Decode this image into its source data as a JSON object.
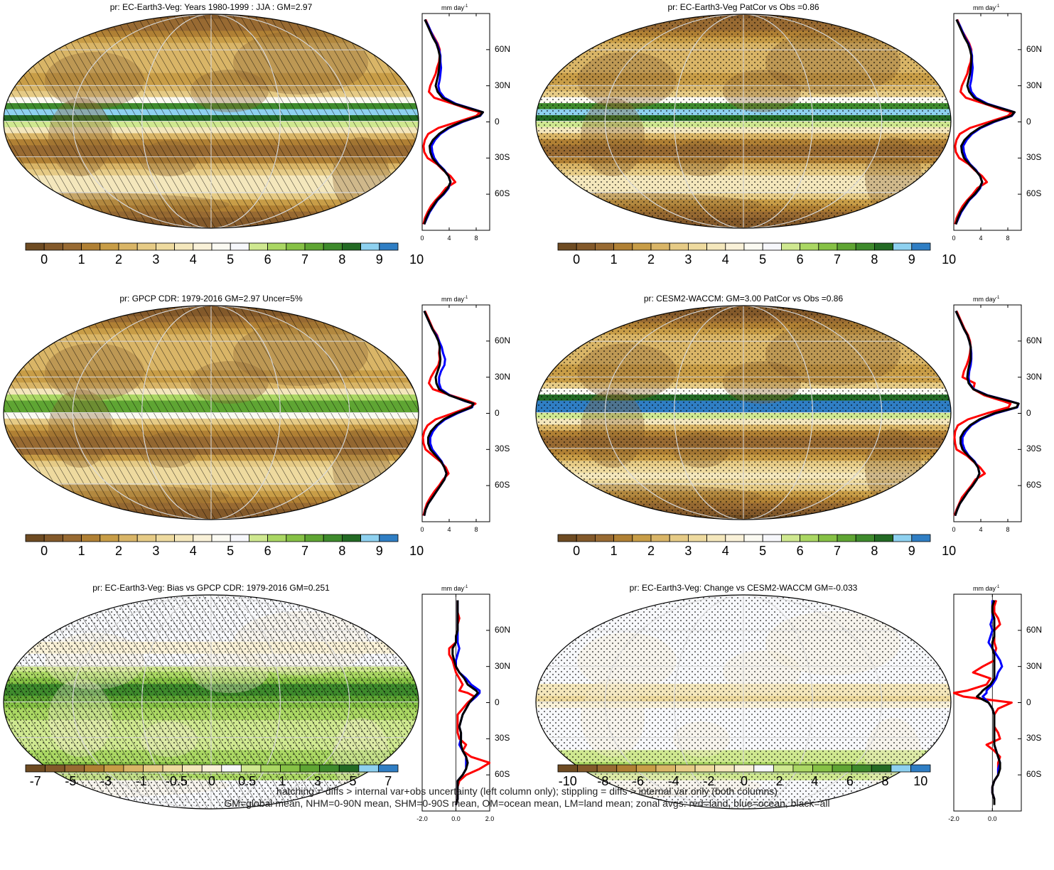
{
  "colors": {
    "seq": [
      "#6e4b22",
      "#83592a",
      "#986a32",
      "#b08034",
      "#c89d47",
      "#d9b567",
      "#e6cb86",
      "#eeda9f",
      "#f4e7bc",
      "#f9f1d8",
      "#fbfaf2",
      "#f6f7fb",
      "#cfe890",
      "#aad763",
      "#86c145",
      "#5fa533",
      "#3e8a2c",
      "#236a24",
      "#8ed1f0",
      "#2f7ec4"
    ],
    "div": [
      "#6e4b22",
      "#83592a",
      "#986a32",
      "#b08034",
      "#c89d47",
      "#d9b567",
      "#e6cb86",
      "#eeda9f",
      "#f4e7bc",
      "#f9f1d8",
      "#f7f8fb",
      "#cfe890",
      "#aad763",
      "#86c145",
      "#5fa533",
      "#3e8a2c",
      "#236a24",
      "#8ed1f0",
      "#2f7ec4"
    ],
    "land": "#ff0000",
    "ocean": "#0000ff",
    "all": "#000000"
  },
  "panels": [
    {
      "id": "p1",
      "title": "pr: EC-Earth3-Veg: Years 1980-1999 : JJA : GM=2.97",
      "scheme": "seq",
      "hatching": true,
      "stippling": false,
      "colorbar_labels": [
        "0",
        "1",
        "2",
        "3",
        "4",
        "5",
        "6",
        "7",
        "8",
        "9",
        "10"
      ],
      "zonal": {
        "unit": "mm day",
        "unit_sup": "-1",
        "xticks": [
          "0",
          "4",
          "8"
        ],
        "xlim": [
          0,
          10
        ],
        "lat_labels": [
          "60N",
          "30N",
          "0",
          "30S",
          "60S"
        ]
      }
    },
    {
      "id": "p2",
      "title": "pr: EC-Earth3-Veg PatCor vs Obs =0.86",
      "scheme": "seq",
      "hatching": false,
      "stippling": true,
      "colorbar_labels": [
        "0",
        "1",
        "2",
        "3",
        "4",
        "5",
        "6",
        "7",
        "8",
        "9",
        "10"
      ],
      "zonal": {
        "unit": "mm day",
        "unit_sup": "-1",
        "xticks": [
          "0",
          "4",
          "8"
        ],
        "xlim": [
          0,
          10
        ],
        "lat_labels": [
          "60N",
          "30N",
          "0",
          "30S",
          "60S"
        ]
      }
    },
    {
      "id": "p3",
      "title": "pr: GPCP CDR: 1979-2016 GM=2.97 Uncer=5%",
      "scheme": "seq",
      "hatching": true,
      "stippling": false,
      "colorbar_labels": [
        "0",
        "1",
        "2",
        "3",
        "4",
        "5",
        "6",
        "7",
        "8",
        "9",
        "10"
      ],
      "zonal": {
        "unit": "mm day",
        "unit_sup": "-1",
        "xticks": [
          "0",
          "4",
          "8"
        ],
        "xlim": [
          0,
          10
        ],
        "lat_labels": [
          "60N",
          "30N",
          "0",
          "30S",
          "60S"
        ]
      }
    },
    {
      "id": "p4",
      "title": "pr: CESM2-WACCM: GM=3.00 PatCor vs Obs =0.86",
      "scheme": "seq",
      "hatching": false,
      "stippling": true,
      "colorbar_labels": [
        "0",
        "1",
        "2",
        "3",
        "4",
        "5",
        "6",
        "7",
        "8",
        "9",
        "10"
      ],
      "zonal": {
        "unit": "mm day",
        "unit_sup": "-1",
        "xticks": [
          "0",
          "4",
          "8"
        ],
        "xlim": [
          0,
          10
        ],
        "lat_labels": [
          "60N",
          "30N",
          "0",
          "30S",
          "60S"
        ]
      }
    },
    {
      "id": "p5",
      "title": "pr: EC-Earth3-Veg: Bias vs GPCP CDR: 1979-2016 GM=0.251",
      "scheme": "div",
      "hatching": true,
      "stippling": true,
      "colorbar_labels": [
        "-7",
        "-5",
        "-3",
        "-1",
        "-0.5",
        "0",
        "0.5",
        "1",
        "3",
        "5",
        "7"
      ],
      "zonal": {
        "unit": "mm day",
        "unit_sup": "-1",
        "xticks": [
          "-2.0",
          "0.0",
          "2.0"
        ],
        "xlim": [
          -2,
          2
        ],
        "lat_labels": [
          "60N",
          "30N",
          "0",
          "30S",
          "60S"
        ]
      }
    },
    {
      "id": "p6",
      "title": "pr: EC-Earth3-Veg: Change vs CESM2-WACCM GM=-0.033",
      "scheme": "div",
      "hatching": false,
      "stippling": true,
      "colorbar_labels": [
        "-10",
        "-8",
        "-6",
        "-4",
        "-2",
        "0",
        "2",
        "4",
        "6",
        "8",
        "10"
      ],
      "zonal": {
        "unit": "mm day",
        "unit_sup": "-1",
        "xticks": [
          "-2.0",
          "0.0"
        ],
        "xlim": [
          -2,
          1.5
        ],
        "lat_labels": [
          "60N",
          "30N",
          "0",
          "30S",
          "60S"
        ]
      }
    }
  ],
  "chart_data": {
    "type": "line",
    "x_label_unit": "mm day-1",
    "y_axis": "latitude (degrees, -90 to 90)",
    "latitudes": [
      -85,
      -80,
      -75,
      -70,
      -65,
      -60,
      -55,
      -50,
      -45,
      -40,
      -35,
      -30,
      -25,
      -20,
      -15,
      -10,
      -5,
      0,
      5,
      8,
      10,
      15,
      20,
      25,
      30,
      35,
      40,
      45,
      50,
      55,
      60,
      65,
      70,
      75,
      80,
      85
    ],
    "panels": [
      {
        "id": "p1",
        "all": [
          0.3,
          0.6,
          1.0,
          1.6,
          2.2,
          3.1,
          3.8,
          4.2,
          3.9,
          3.2,
          2.3,
          1.5,
          1.2,
          1.1,
          1.6,
          2.5,
          3.8,
          5.8,
          8.5,
          9.0,
          7.8,
          4.8,
          3.0,
          2.3,
          2.0,
          2.2,
          2.4,
          2.5,
          2.6,
          2.6,
          2.4,
          2.1,
          1.6,
          1.2,
          0.8,
          0.4
        ],
        "land": [
          0.2,
          0.4,
          0.8,
          1.3,
          2.0,
          2.8,
          3.5,
          4.9,
          4.2,
          3.1,
          2.2,
          0.8,
          0.3,
          0.2,
          0.4,
          0.9,
          2.4,
          5.2,
          8.0,
          8.6,
          7.2,
          4.6,
          1.8,
          1.0,
          1.2,
          1.6,
          2.0,
          2.2,
          2.5,
          2.6,
          2.6,
          2.3,
          1.8,
          1.3,
          0.9,
          0.5
        ],
        "ocean": [
          0.3,
          0.7,
          1.1,
          1.7,
          2.3,
          3.2,
          3.9,
          4.2,
          3.9,
          3.3,
          2.4,
          1.8,
          1.5,
          1.4,
          1.9,
          2.7,
          4.0,
          6.0,
          8.6,
          9.0,
          7.9,
          5.0,
          3.3,
          2.6,
          2.4,
          2.6,
          2.7,
          2.8,
          2.7,
          2.7,
          2.5,
          2.2,
          1.7,
          1.3,
          0.9,
          0.4
        ]
      },
      {
        "id": "p2",
        "all": [
          0.3,
          0.6,
          1.0,
          1.6,
          2.2,
          3.1,
          3.8,
          4.2,
          3.9,
          3.2,
          2.3,
          1.5,
          1.2,
          1.1,
          1.6,
          2.5,
          3.8,
          5.8,
          8.5,
          9.0,
          7.8,
          4.8,
          3.0,
          2.3,
          2.0,
          2.2,
          2.4,
          2.5,
          2.6,
          2.6,
          2.4,
          2.1,
          1.6,
          1.2,
          0.8,
          0.4
        ],
        "land": [
          0.2,
          0.4,
          0.8,
          1.3,
          2.0,
          2.8,
          3.5,
          4.9,
          4.2,
          3.1,
          2.2,
          0.8,
          0.3,
          0.2,
          0.4,
          0.9,
          2.4,
          5.2,
          8.0,
          8.6,
          7.2,
          4.6,
          1.8,
          1.0,
          1.2,
          1.6,
          2.0,
          2.2,
          2.5,
          2.6,
          2.6,
          2.3,
          1.8,
          1.3,
          0.9,
          0.5
        ],
        "ocean": [
          0.3,
          0.7,
          1.1,
          1.7,
          2.3,
          3.2,
          3.9,
          4.2,
          3.9,
          3.3,
          2.4,
          1.8,
          1.5,
          1.4,
          1.9,
          2.7,
          4.0,
          6.0,
          8.6,
          9.0,
          7.9,
          5.0,
          3.3,
          2.6,
          2.4,
          2.6,
          2.7,
          2.8,
          2.7,
          2.7,
          2.5,
          2.2,
          1.7,
          1.3,
          0.9,
          0.4
        ]
      },
      {
        "id": "p3",
        "all": [
          0.3,
          0.5,
          0.9,
          1.5,
          2.1,
          2.7,
          3.3,
          3.6,
          3.3,
          2.8,
          2.0,
          1.2,
          0.9,
          0.9,
          1.3,
          2.1,
          3.2,
          5.0,
          7.3,
          7.6,
          6.5,
          4.0,
          2.5,
          2.1,
          2.0,
          2.3,
          2.6,
          2.7,
          2.6,
          2.6,
          2.4,
          2.0,
          1.5,
          1.1,
          0.7,
          0.3
        ],
        "land": [
          0.2,
          0.4,
          0.7,
          1.2,
          1.8,
          2.5,
          3.1,
          3.9,
          3.5,
          2.7,
          1.6,
          0.5,
          0.2,
          0.1,
          0.3,
          0.8,
          2.0,
          4.5,
          6.9,
          7.9,
          7.0,
          4.2,
          1.6,
          1.0,
          1.3,
          1.8,
          2.4,
          2.6,
          2.5,
          2.6,
          2.5,
          2.2,
          1.6,
          1.2,
          0.8,
          0.4
        ],
        "ocean": [
          0.3,
          0.5,
          0.9,
          1.5,
          2.1,
          2.7,
          3.3,
          3.6,
          3.3,
          2.9,
          2.2,
          1.5,
          1.2,
          1.2,
          1.6,
          2.3,
          3.4,
          5.2,
          7.4,
          7.6,
          6.4,
          4.1,
          2.8,
          2.5,
          2.5,
          2.8,
          3.3,
          3.4,
          3.1,
          2.9,
          2.5,
          2.1,
          1.5,
          1.1,
          0.7,
          0.3
        ]
      },
      {
        "id": "p4",
        "all": [
          0.2,
          0.5,
          0.9,
          1.5,
          2.1,
          2.8,
          3.4,
          3.8,
          3.6,
          3.0,
          2.1,
          1.3,
          1.0,
          1.0,
          1.5,
          2.4,
          3.8,
          6.0,
          9.3,
          9.6,
          8.3,
          4.9,
          2.9,
          2.2,
          2.0,
          2.1,
          2.3,
          2.5,
          2.5,
          2.5,
          2.3,
          2.0,
          1.5,
          1.1,
          0.7,
          0.3
        ],
        "land": [
          0.1,
          0.4,
          0.8,
          1.2,
          1.9,
          2.6,
          3.2,
          4.6,
          3.9,
          2.9,
          1.9,
          0.4,
          0.2,
          0.1,
          0.2,
          0.6,
          2.1,
          4.9,
          8.1,
          8.4,
          7.4,
          4.5,
          2.9,
          3.1,
          1.3,
          1.5,
          1.9,
          2.2,
          2.4,
          2.5,
          2.4,
          2.1,
          1.6,
          1.2,
          0.8,
          0.4
        ],
        "ocean": [
          0.2,
          0.5,
          0.9,
          1.5,
          2.1,
          2.8,
          3.4,
          3.8,
          3.6,
          3.1,
          2.2,
          1.6,
          1.3,
          1.3,
          1.8,
          2.6,
          4.0,
          6.2,
          9.4,
          9.6,
          8.4,
          5.0,
          3.0,
          2.3,
          2.2,
          2.3,
          2.5,
          2.6,
          2.6,
          2.5,
          2.3,
          2.0,
          1.5,
          1.1,
          0.7,
          0.3
        ]
      },
      {
        "id": "p5",
        "all": [
          0.0,
          0.1,
          0.1,
          0.1,
          0.1,
          0.4,
          0.6,
          0.7,
          0.6,
          0.4,
          0.3,
          0.3,
          0.3,
          0.2,
          0.3,
          0.4,
          0.6,
          0.8,
          1.1,
          1.3,
          1.2,
          0.7,
          0.5,
          0.2,
          0.0,
          -0.1,
          -0.2,
          -0.2,
          0.0,
          0.0,
          0.1,
          0.1,
          0.1,
          0.1,
          0.1,
          0.1
        ],
        "land": [
          0.0,
          0.1,
          0.1,
          0.1,
          0.2,
          0.6,
          1.4,
          2.0,
          0.9,
          0.4,
          0.6,
          0.2,
          0.1,
          0.1,
          0.1,
          0.1,
          0.4,
          0.7,
          1.1,
          0.7,
          0.2,
          0.4,
          0.2,
          0.0,
          -0.1,
          -0.2,
          -0.4,
          -0.4,
          0.0,
          0.0,
          0.1,
          0.1,
          0.2,
          0.1,
          0.1,
          0.1
        ],
        "ocean": [
          0.0,
          0.1,
          0.1,
          0.1,
          0.1,
          0.4,
          0.6,
          0.6,
          0.6,
          0.4,
          0.2,
          0.3,
          0.3,
          0.2,
          0.3,
          0.4,
          0.6,
          0.8,
          1.2,
          1.4,
          1.4,
          0.9,
          0.6,
          0.2,
          0.0,
          0.0,
          0.1,
          0.2,
          0.1,
          0.1,
          0.1,
          0.1,
          0.1,
          0.1,
          0.1,
          0.1
        ]
      },
      {
        "id": "p6",
        "all": [
          0.1,
          0.1,
          0.0,
          0.0,
          0.1,
          0.3,
          0.4,
          0.4,
          0.3,
          0.2,
          0.1,
          0.1,
          0.1,
          0.1,
          0.1,
          0.1,
          0.0,
          -0.2,
          -0.8,
          -0.6,
          -0.5,
          -0.1,
          0.1,
          0.1,
          0.1,
          0.1,
          0.1,
          0.0,
          0.0,
          0.1,
          0.1,
          0.1,
          0.1,
          0.0,
          0.0,
          0.1
        ],
        "land": [
          0.1,
          0.1,
          0.0,
          0.0,
          0.1,
          0.3,
          0.3,
          0.3,
          0.4,
          0.1,
          -0.3,
          0.4,
          0.3,
          0.1,
          0.1,
          0.1,
          0.3,
          1.0,
          -1.5,
          -2.1,
          -1.3,
          -0.3,
          -0.1,
          -1.0,
          -0.5,
          0.1,
          0.1,
          0.2,
          0.1,
          0.1,
          0.1,
          0.4,
          0.3,
          0.1,
          0.1,
          0.2
        ],
        "ocean": [
          0.1,
          0.1,
          0.0,
          0.0,
          0.1,
          0.3,
          0.3,
          0.4,
          0.3,
          0.2,
          0.1,
          0.1,
          0.1,
          0.1,
          0.1,
          0.1,
          0.0,
          -0.2,
          -0.5,
          -0.3,
          -0.3,
          0.0,
          0.2,
          0.3,
          0.5,
          0.4,
          0.2,
          0.0,
          -0.2,
          -0.1,
          0.0,
          -0.1,
          0.0,
          0.0,
          0.0,
          0.0
        ]
      }
    ]
  },
  "footer": {
    "line1": "hatching = diffs > internal var+obs uncertainty (left column only); stippling = diffs > internal var only (both columns)",
    "line2": "GM=global mean, NHM=0-90N mean, SHM=0-90S mean, OM=ocean mean, LM=land mean; zonal avgs: red=land, blue=ocean, black=all"
  }
}
